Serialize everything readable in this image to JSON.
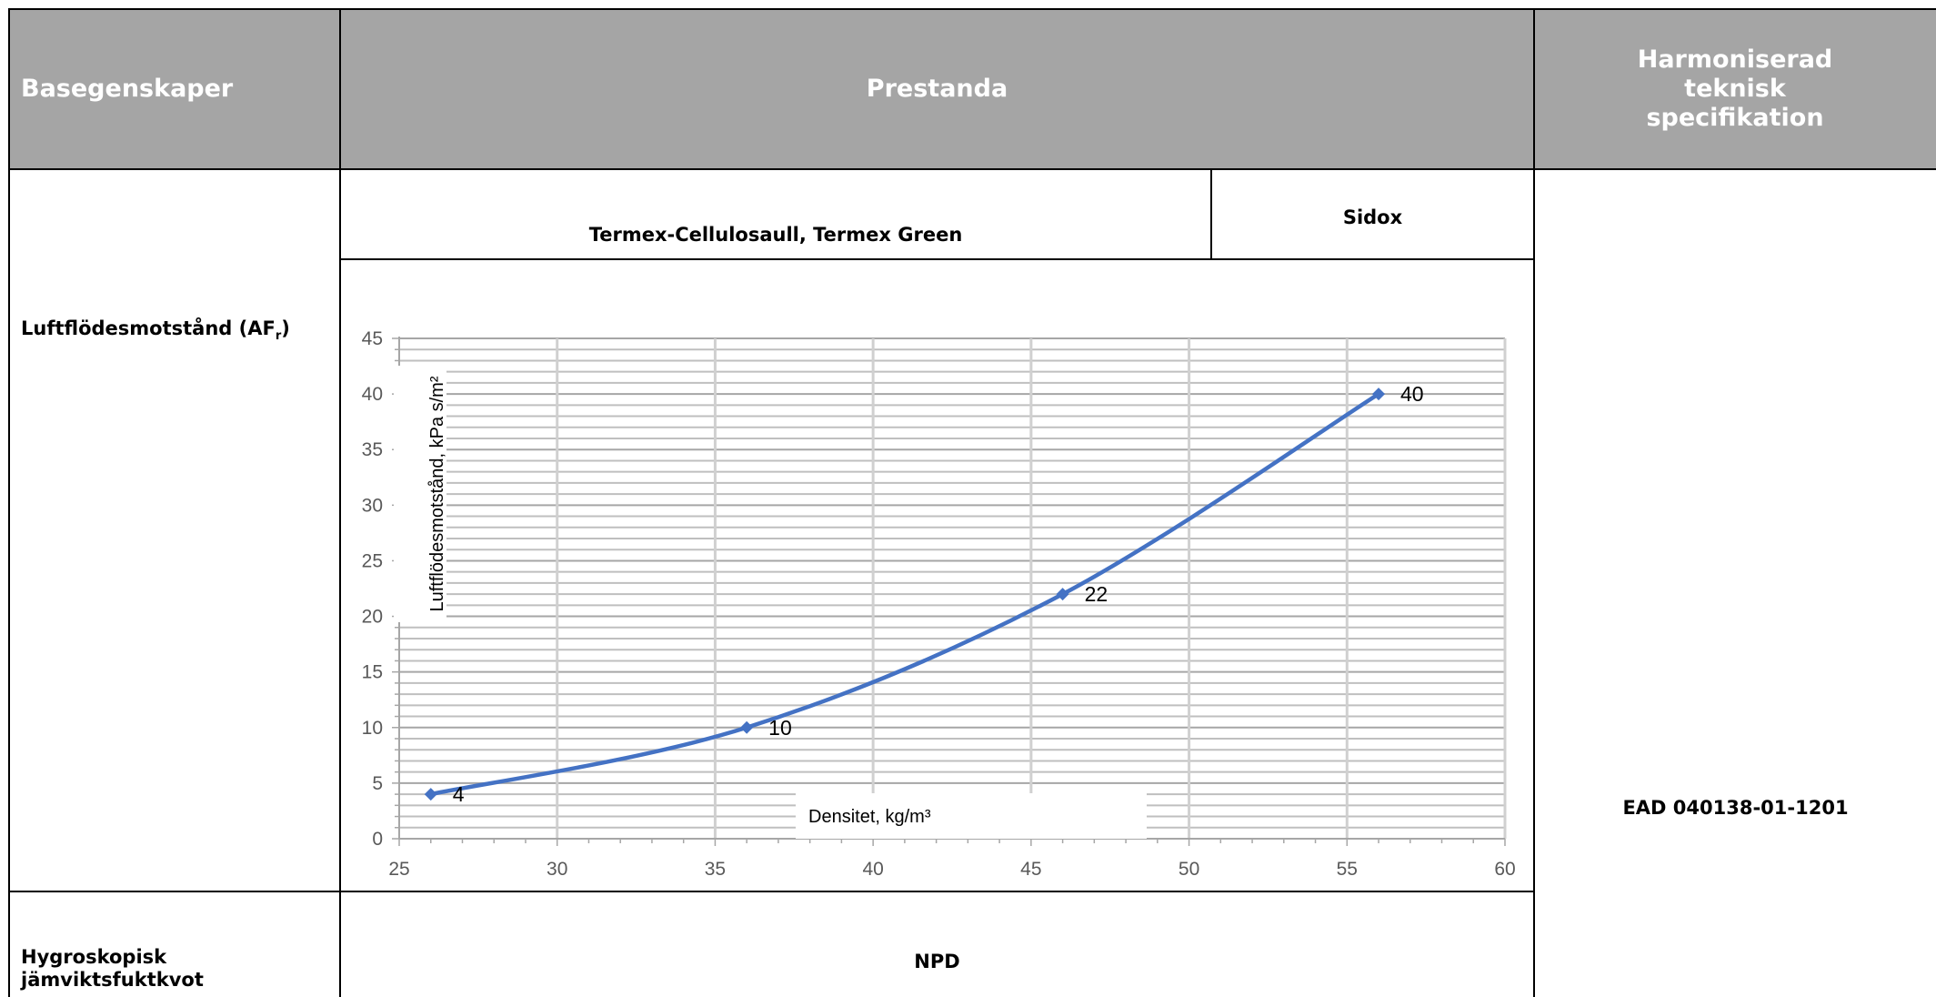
{
  "header": {
    "col1": "Basegenskaper",
    "col2": "Prestanda",
    "col3": "Harmoniserad teknisk specifikation"
  },
  "row1": {
    "product": "Termex-Cellulosaull, Termex Green",
    "page_ref": "Sidox"
  },
  "row2": {
    "property_main": "Luftflödesmotstånd (AF",
    "property_sub": "r",
    "property_end": ")",
    "spec": "EAD 040138-01-1201"
  },
  "row3": {
    "property_line1": "Hygroskopisk",
    "property_line2": "jämviktsfuktkvot",
    "value": "NPD"
  },
  "colors": {
    "header_bg": "#a5a5a5",
    "series": "#4472c4",
    "grid": "#bfbfbf"
  },
  "chart_data": {
    "type": "line",
    "xlabel": "Densitet, kg/m³",
    "ylabel": "Luftflödesmotstånd, kPa s/m²",
    "xlim": [
      25,
      60
    ],
    "ylim": [
      0,
      45
    ],
    "x_ticks": [
      "25",
      "30",
      "35",
      "40",
      "45",
      "50",
      "55",
      "60"
    ],
    "y_ticks": [
      "0",
      "5",
      "10",
      "15",
      "20",
      "25",
      "30",
      "35",
      "40",
      "45"
    ],
    "grid": true,
    "marker": "diamond",
    "smooth": true,
    "series": [
      {
        "x": [
          26,
          36,
          46,
          56
        ],
        "y": [
          4,
          10,
          22,
          40
        ],
        "labels": [
          "4",
          "10",
          "22",
          "40"
        ]
      }
    ]
  }
}
